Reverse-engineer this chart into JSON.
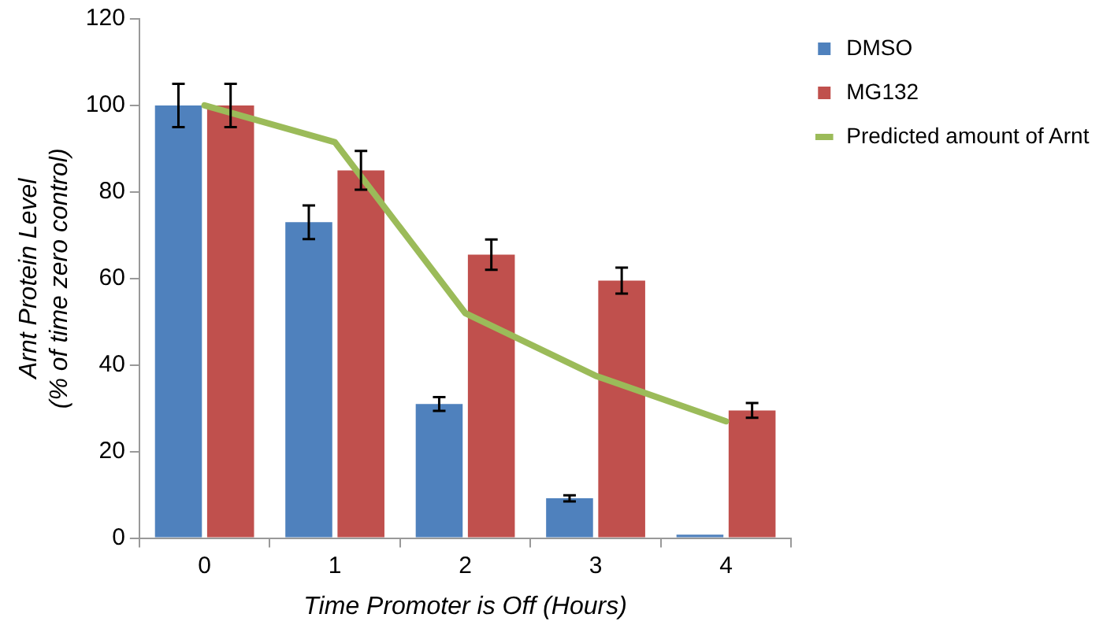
{
  "chart_data": {
    "type": "bar",
    "xlabel": "Time Promoter is Off (Hours)",
    "ylabel": "Arnt Protein Level\n(% of time zero control)",
    "categories": [
      "0",
      "1",
      "2",
      "3",
      "4"
    ],
    "ylim": [
      0,
      120
    ],
    "yticks": [
      0,
      20,
      40,
      60,
      80,
      100,
      120
    ],
    "grid": false,
    "legend": "top right",
    "series": [
      {
        "name": "DMSO",
        "color": "#4f81bd",
        "values": [
          100,
          73,
          31,
          9.2,
          0.8
        ],
        "errors": [
          5,
          3.9,
          1.6,
          0.7,
          null
        ]
      },
      {
        "name": "MG132",
        "color": "#c0504d",
        "values": [
          100,
          85,
          65.5,
          59.5,
          29.5
        ],
        "errors": [
          5,
          4.5,
          3.5,
          3,
          1.7
        ]
      },
      {
        "name": "Predicted amount of Arnt",
        "type": "line",
        "color": "#9bbb59",
        "values": [
          100,
          91.5,
          52,
          37.5,
          27
        ],
        "marker": "none"
      }
    ]
  }
}
